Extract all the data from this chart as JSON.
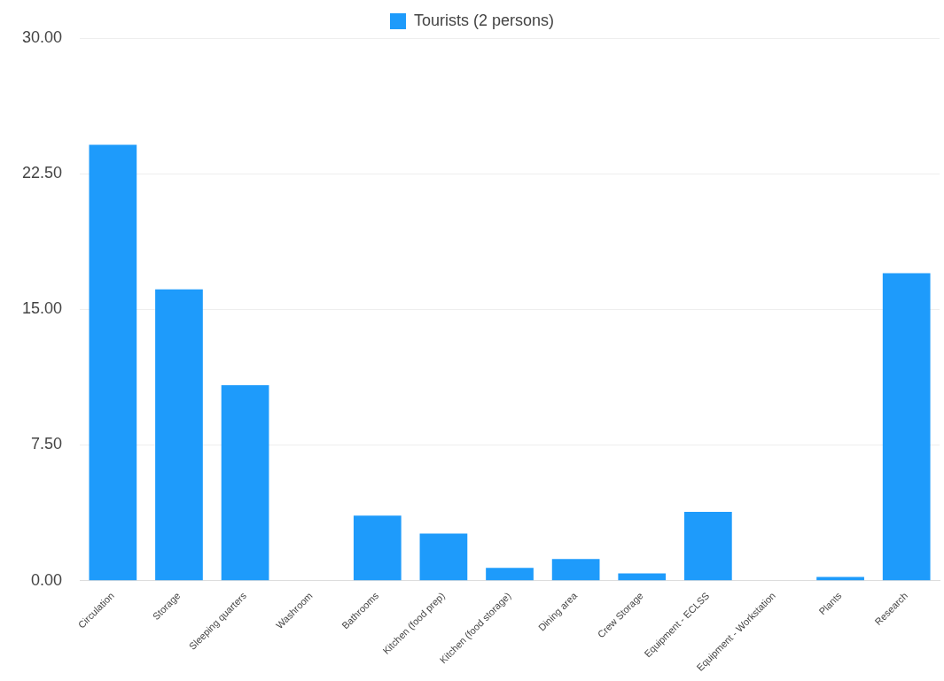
{
  "chart_data": {
    "type": "bar",
    "categories": [
      "Circulation",
      "Storage",
      "Sleeping quarters",
      "Washroom",
      "Bathrooms",
      "Kitchen (food prep)",
      "Kitchen (food storage)",
      "Dining area",
      "Crew Storage",
      "Equipment - ECLSS",
      "Equipment - Workstation",
      "Plants",
      "Research"
    ],
    "series": [
      {
        "name": "Tourists (2 persons)",
        "color": "#1e9bfb",
        "values": [
          24.1,
          16.1,
          10.8,
          0,
          3.6,
          2.6,
          0.7,
          1.2,
          0.4,
          3.8,
          0,
          0.2,
          17.0
        ]
      }
    ],
    "ylim": [
      0,
      30
    ],
    "yticks": [
      {
        "value": 0,
        "label": "0.00"
      },
      {
        "value": 7.5,
        "label": "7.50"
      },
      {
        "value": 15,
        "label": "15.00"
      },
      {
        "value": 22.5,
        "label": "22.50"
      },
      {
        "value": 30,
        "label": "30.00"
      }
    ],
    "grid": "y",
    "legend": "top"
  }
}
